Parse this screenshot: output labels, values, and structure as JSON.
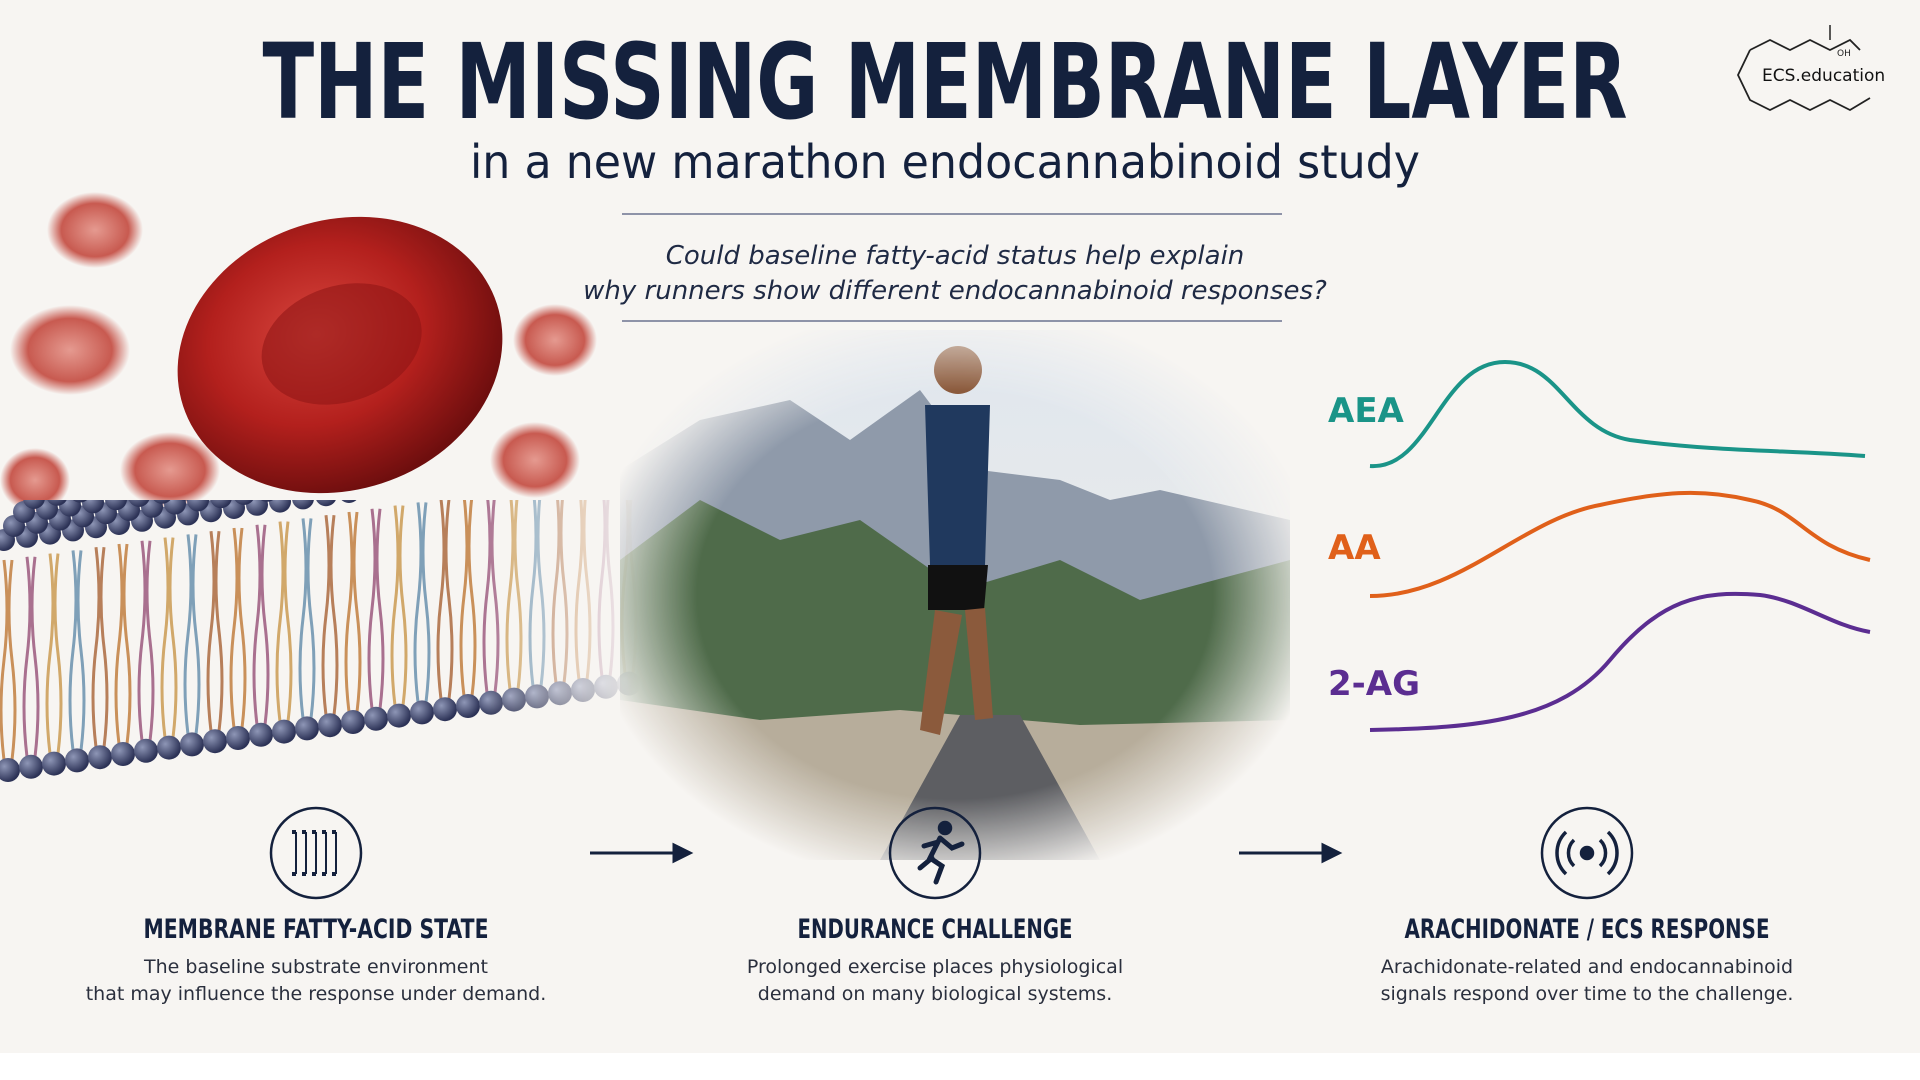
{
  "header": {
    "title": "THE MISSING MEMBRANE LAYER",
    "subtitle": "in a new marathon endocannabinoid study",
    "question": [
      "Could baseline fatty-acid status help explain",
      "why runners show different endocannabinoid responses?"
    ]
  },
  "logo": {
    "text": "ECS.education",
    "group": "OH"
  },
  "curves": [
    {
      "label": "AEA",
      "color": "#1a9488"
    },
    {
      "label": "AA",
      "color": "#e0601a"
    },
    {
      "label": "2-AG",
      "color": "#5b2d91"
    }
  ],
  "steps": [
    {
      "title": "MEMBRANE FATTY-ACID STATE",
      "description": [
        "The baseline substrate environment",
        "that may influence the response under demand."
      ]
    },
    {
      "title": "ENDURANCE CHALLENGE",
      "description": [
        "Prolonged exercise places physiological",
        "demand on many biological systems."
      ]
    },
    {
      "title": "ARACHIDONATE / ECS RESPONSE",
      "description": [
        "Arachidonate-related and endocannabinoid",
        "signals respond over time to the challenge."
      ]
    }
  ]
}
